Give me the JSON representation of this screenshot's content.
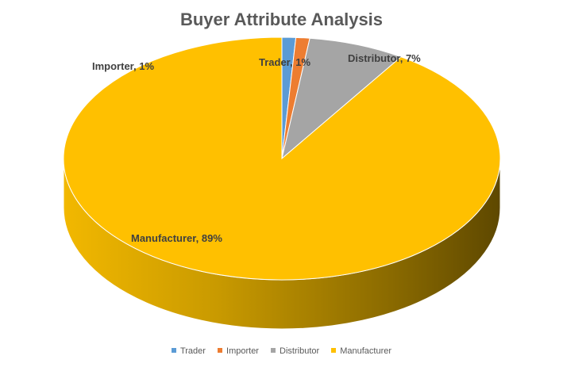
{
  "chart_data": {
    "type": "pie",
    "title": "Buyer Attribute Analysis",
    "categories": [
      "Trader",
      "Importer",
      "Distributor",
      "Manufacturer"
    ],
    "values": [
      1,
      1,
      7,
      89
    ],
    "data_labels": [
      "Trader, 1%",
      "Importer, 1%",
      "Distributor, 7%",
      "Manufacturer, 89%"
    ],
    "colors": [
      "#5B9BD5",
      "#ED7D31",
      "#A5A5A5",
      "#FFC000"
    ],
    "legend_position": "bottom",
    "style": "3d"
  }
}
